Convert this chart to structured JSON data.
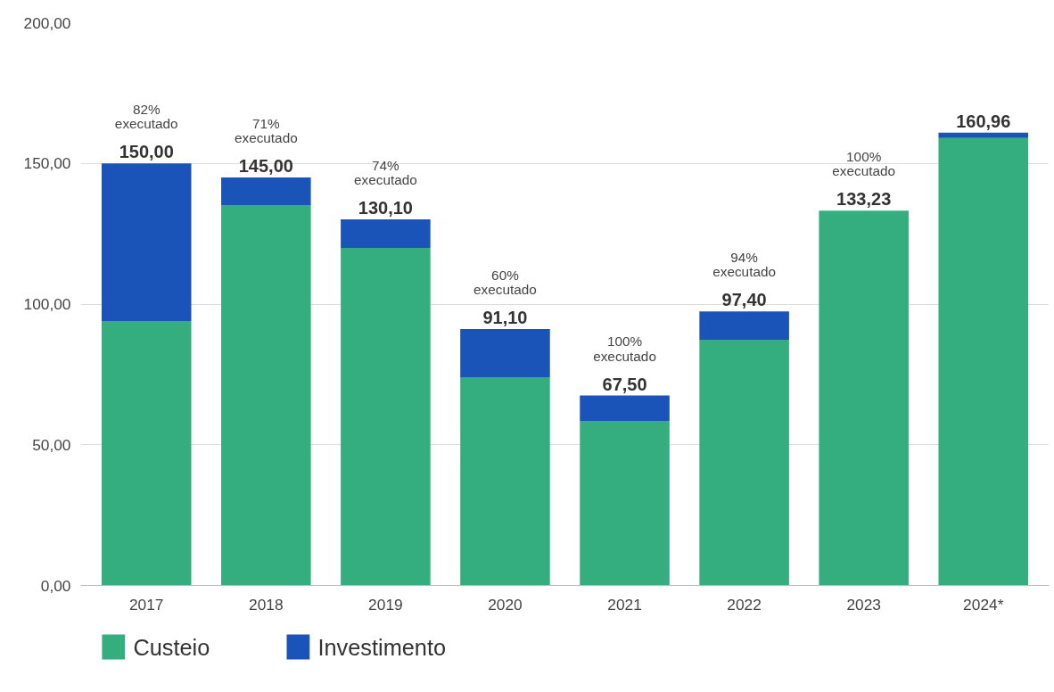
{
  "chart_data": {
    "type": "bar",
    "stacked": true,
    "categories": [
      "2017",
      "2018",
      "2019",
      "2020",
      "2021",
      "2022",
      "2023",
      "2024*"
    ],
    "series": [
      {
        "name": "Custeio",
        "color": "#35ae7f",
        "values": [
          94,
          135,
          120,
          74,
          58.3,
          87.3,
          133.23,
          159
        ]
      },
      {
        "name": "Investimento",
        "color": "#1a54b8",
        "values": [
          56,
          10,
          10.1,
          17.1,
          9.2,
          10.1,
          0,
          1.96
        ]
      }
    ],
    "totals": [
      "150,00",
      "145,00",
      "130,10",
      "91,10",
      "67,50",
      "97,40",
      "133,23",
      "160,96"
    ],
    "annotations": [
      "82%\nexecutado",
      "71%\nexecutado",
      "74%\nexecutado",
      "60%\nexecutado",
      "100%\nexecutado",
      "94%\nexecutado",
      "100%\nexecutado"
    ],
    "ylim": [
      0,
      200
    ],
    "yticks": [
      {
        "value": 0,
        "label": "0,00"
      },
      {
        "value": 50,
        "label": "50,00"
      },
      {
        "value": 100,
        "label": "100,00"
      },
      {
        "value": 150,
        "label": "150,00"
      },
      {
        "value": 200,
        "label": "200,00"
      }
    ],
    "grid": "y",
    "legend": "bottom left"
  }
}
